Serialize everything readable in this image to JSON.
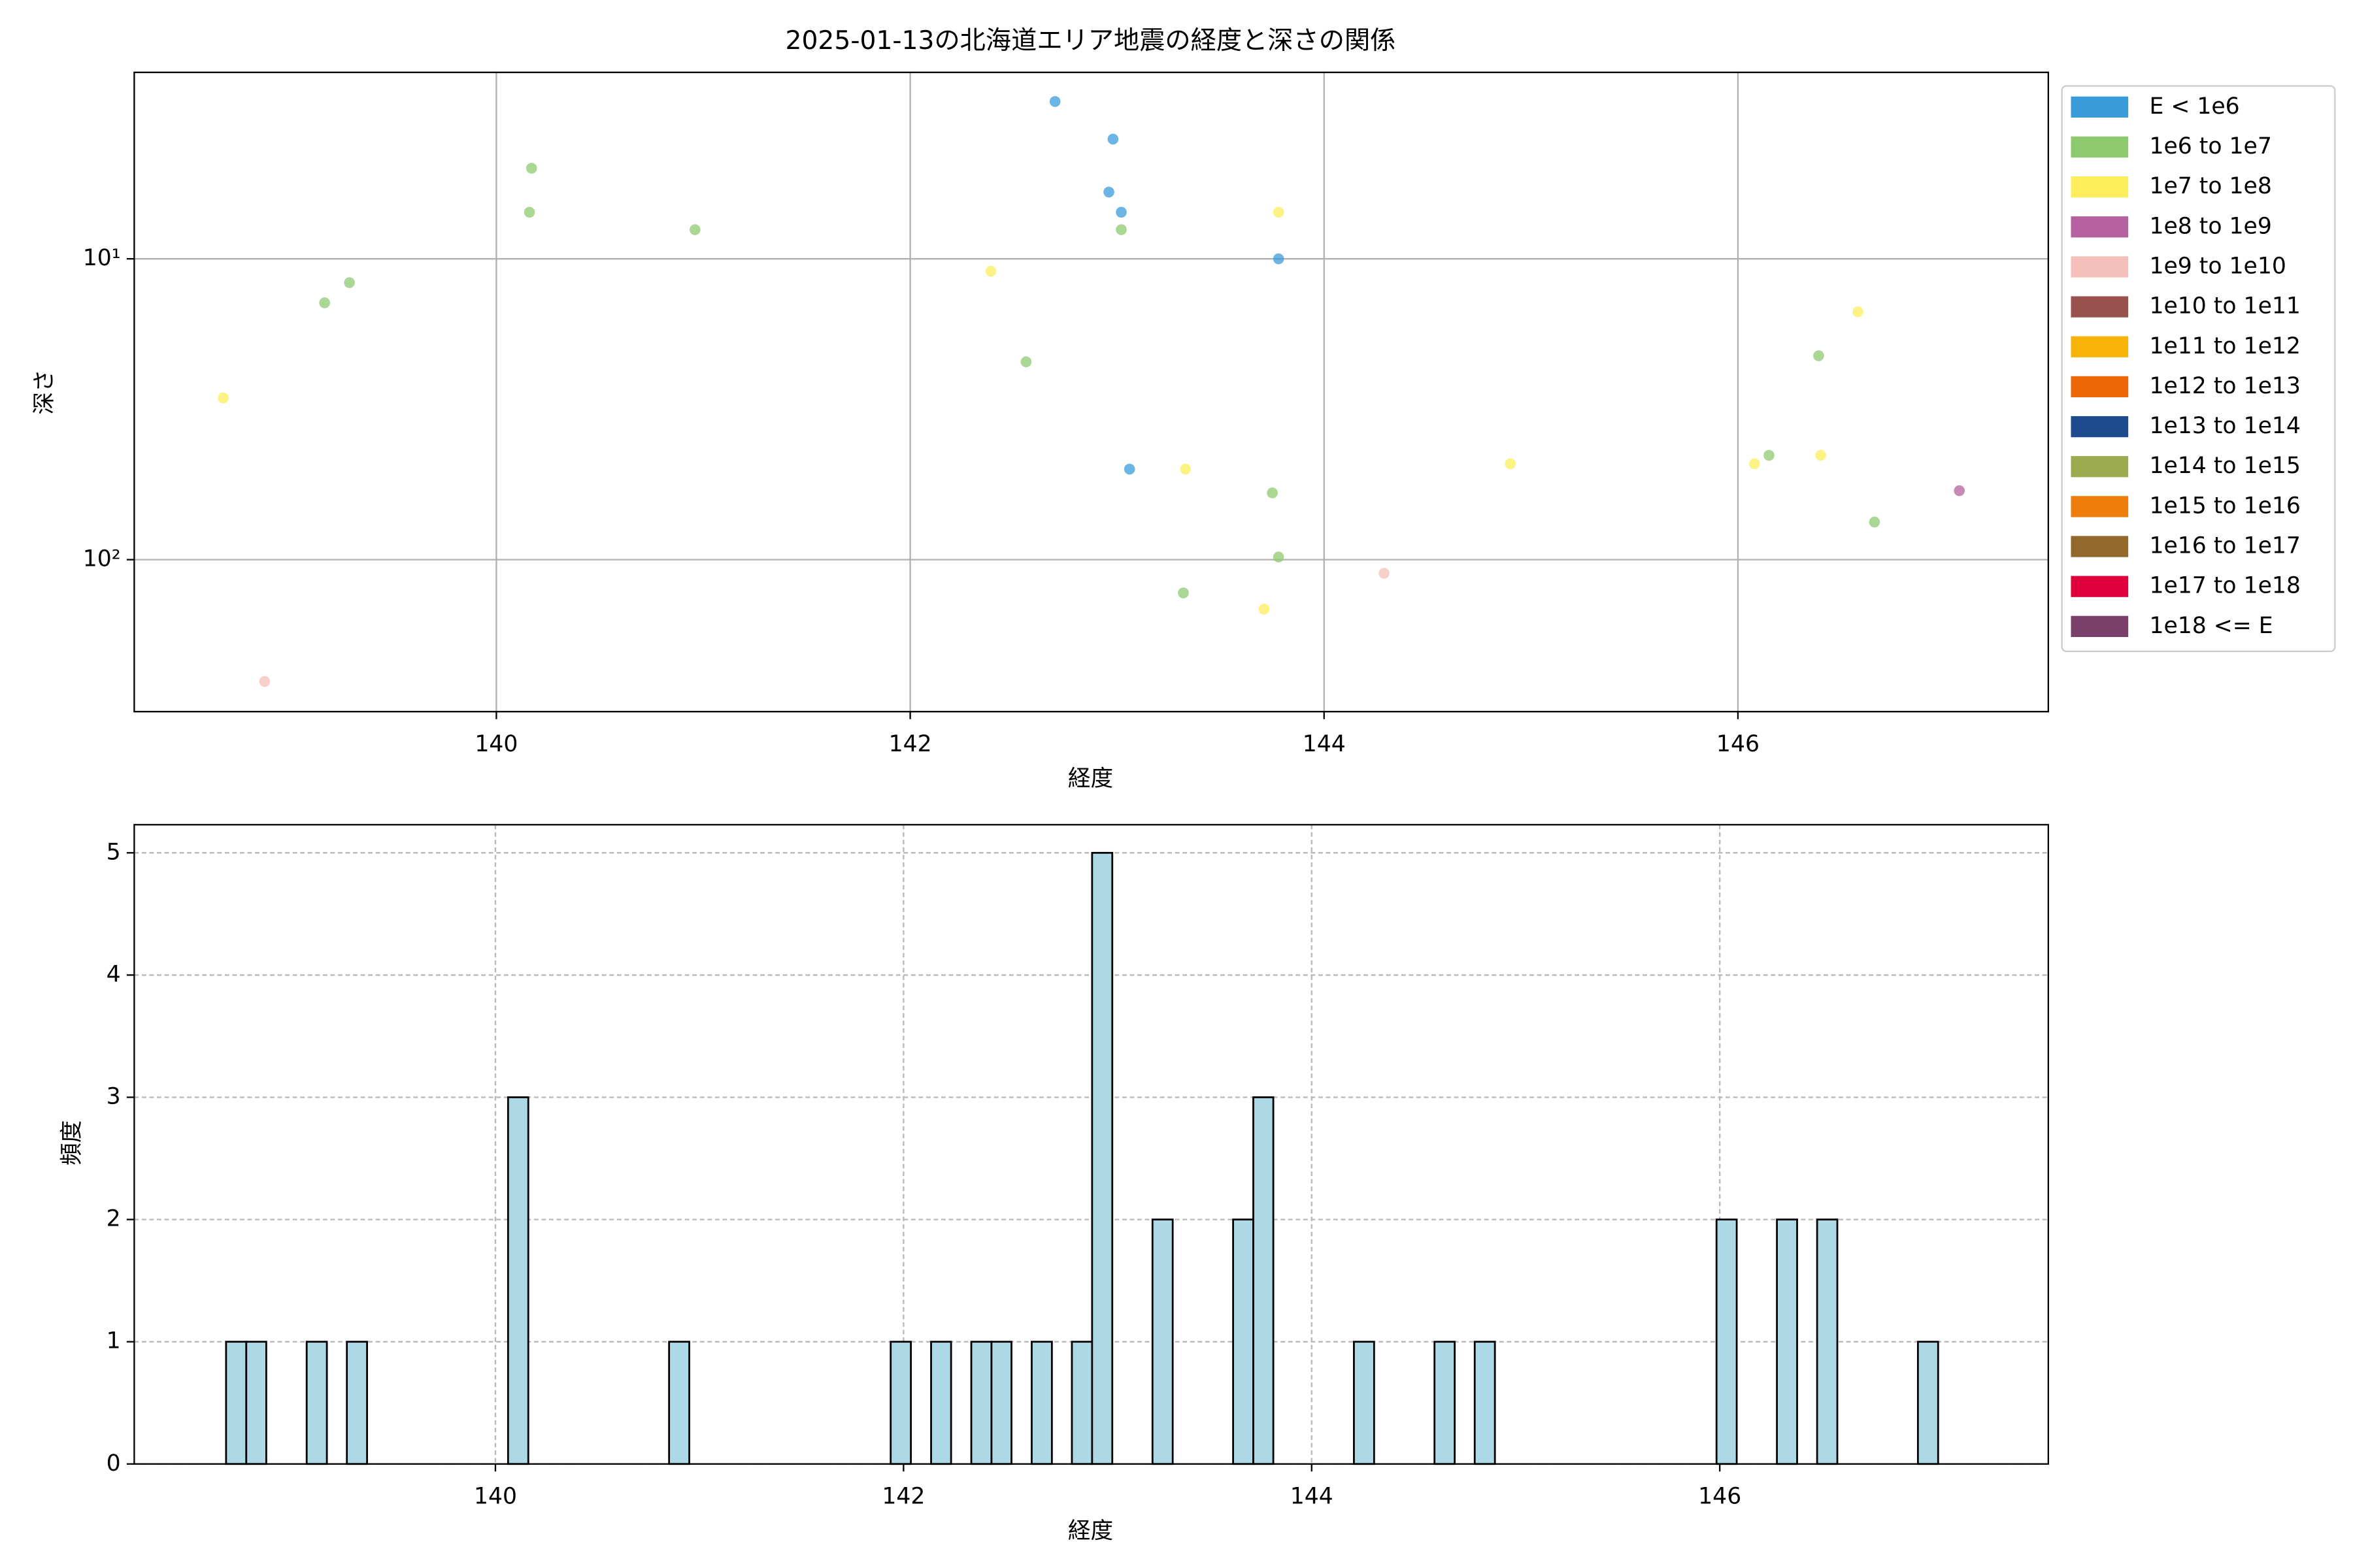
{
  "chart_data": [
    {
      "type": "scatter",
      "title": "2025-01-13の北海道エリア地震の経度と深さの関係",
      "x_label": "経度",
      "y_label": "深さ",
      "xlim": [
        138.25,
        147.5
      ],
      "xticks": [
        140,
        142,
        144,
        146
      ],
      "ylim": [
        2.4,
        320
      ],
      "y_scale": "log",
      "y_inverted": true,
      "yticks": [
        {
          "value": 10,
          "label": "10¹"
        },
        {
          "value": 100,
          "label": "10²"
        }
      ],
      "grid": true,
      "legend": "outside-upper-right",
      "series": [
        {
          "name": "E < 1e6",
          "color": "#3a9bd9",
          "x": [
            142.7,
            142.98,
            142.96,
            143.02,
            143.78,
            143.06
          ],
          "values": [
            3.0,
            4.0,
            6.0,
            7.0,
            10,
            50
          ]
        },
        {
          "name": "1e6 to 1e7",
          "color": "#8dc96f",
          "x": [
            140.17,
            140.16,
            140.96,
            139.17,
            139.29,
            143.02,
            142.56,
            146.39,
            146.15,
            143.75,
            146.66,
            143.78,
            143.32
          ],
          "values": [
            5,
            7,
            8,
            14,
            12,
            8,
            22,
            21,
            45,
            60,
            75,
            98,
            129
          ]
        },
        {
          "name": "1e7 to 1e8",
          "color": "#fced5b",
          "x": [
            138.68,
            143.78,
            142.39,
            146.58,
            143.33,
            144.9,
            146.08,
            146.4,
            143.71
          ],
          "values": [
            29,
            7,
            11,
            15,
            50,
            48,
            48,
            45,
            146
          ]
        },
        {
          "name": "1e8 to 1e9",
          "color": "#b5619f",
          "x": [
            147.07
          ],
          "values": [
            59
          ]
        },
        {
          "name": "1e9 to 1e10",
          "color": "#f5c0ba",
          "x": [
            138.88,
            144.29
          ],
          "values": [
            254,
            111
          ]
        },
        {
          "name": "1e10 to 1e11",
          "color": "#97524d",
          "x": [],
          "values": []
        },
        {
          "name": "1e11 to 1e12",
          "color": "#f7b308",
          "x": [],
          "values": []
        },
        {
          "name": "1e12 to 1e13",
          "color": "#ed6704",
          "x": [],
          "values": []
        },
        {
          "name": "1e13 to 1e14",
          "color": "#1e4a8f",
          "x": [],
          "values": []
        },
        {
          "name": "1e14 to 1e15",
          "color": "#9bab4d",
          "x": [],
          "values": []
        },
        {
          "name": "1e15 to 1e16",
          "color": "#ee7d0c",
          "x": [],
          "values": []
        },
        {
          "name": "1e16 to 1e17",
          "color": "#93692b",
          "x": [],
          "values": []
        },
        {
          "name": "1e17 to 1e18",
          "color": "#e0003c",
          "x": [],
          "values": []
        },
        {
          "name": "1e18 <= E",
          "color": "#7b3f6b",
          "x": [],
          "values": []
        }
      ]
    },
    {
      "type": "histogram",
      "x_label": "経度",
      "y_label": "頻度",
      "color": "#add8e6",
      "edgecolor": "#000000",
      "xlim": [
        138.23,
        147.61
      ],
      "xticks": [
        140,
        142,
        144,
        146
      ],
      "ylim": [
        0,
        5.23
      ],
      "yticks": [
        0,
        1,
        2,
        3,
        4,
        5
      ],
      "grid": true,
      "bins": [
        138.68,
        138.779,
        138.877,
        138.976,
        139.075,
        139.174,
        139.272,
        139.371,
        139.47,
        139.568,
        139.667,
        139.766,
        139.864,
        139.963,
        140.062,
        140.161,
        140.259,
        140.358,
        140.457,
        140.555,
        140.654,
        140.753,
        140.851,
        140.95,
        141.049,
        141.148,
        141.246,
        141.345,
        141.444,
        141.542,
        141.641,
        141.74,
        141.838,
        141.937,
        142.036,
        142.135,
        142.233,
        142.332,
        142.431,
        142.529,
        142.628,
        142.727,
        142.825,
        142.924,
        143.023,
        143.122,
        143.22,
        143.319,
        143.418,
        143.516,
        143.615,
        143.714,
        143.812,
        143.911,
        144.01,
        144.109,
        144.207,
        144.306,
        144.405,
        144.503,
        144.602,
        144.701,
        144.799,
        144.898,
        144.997,
        145.096,
        145.194,
        145.293,
        145.392,
        145.49,
        145.589,
        145.688,
        145.786,
        145.885,
        145.984,
        146.083,
        146.181,
        146.28,
        146.379,
        146.477,
        146.576,
        146.675,
        146.773,
        146.872,
        146.971,
        147.07
      ],
      "values": [
        1,
        1,
        0,
        0,
        1,
        0,
        1,
        0,
        0,
        0,
        0,
        0,
        0,
        0,
        3,
        0,
        0,
        0,
        0,
        0,
        0,
        0,
        1,
        0,
        0,
        0,
        0,
        0,
        0,
        0,
        0,
        0,
        0,
        1,
        0,
        1,
        0,
        1,
        1,
        0,
        1,
        0,
        1,
        5,
        0,
        0,
        2,
        0,
        0,
        0,
        2,
        3,
        0,
        0,
        0,
        0,
        1,
        0,
        0,
        0,
        1,
        0,
        1,
        0,
        0,
        0,
        0,
        0,
        0,
        0,
        0,
        0,
        0,
        0,
        2,
        0,
        0,
        2,
        0,
        2,
        0,
        0,
        0,
        0,
        1
      ]
    }
  ]
}
